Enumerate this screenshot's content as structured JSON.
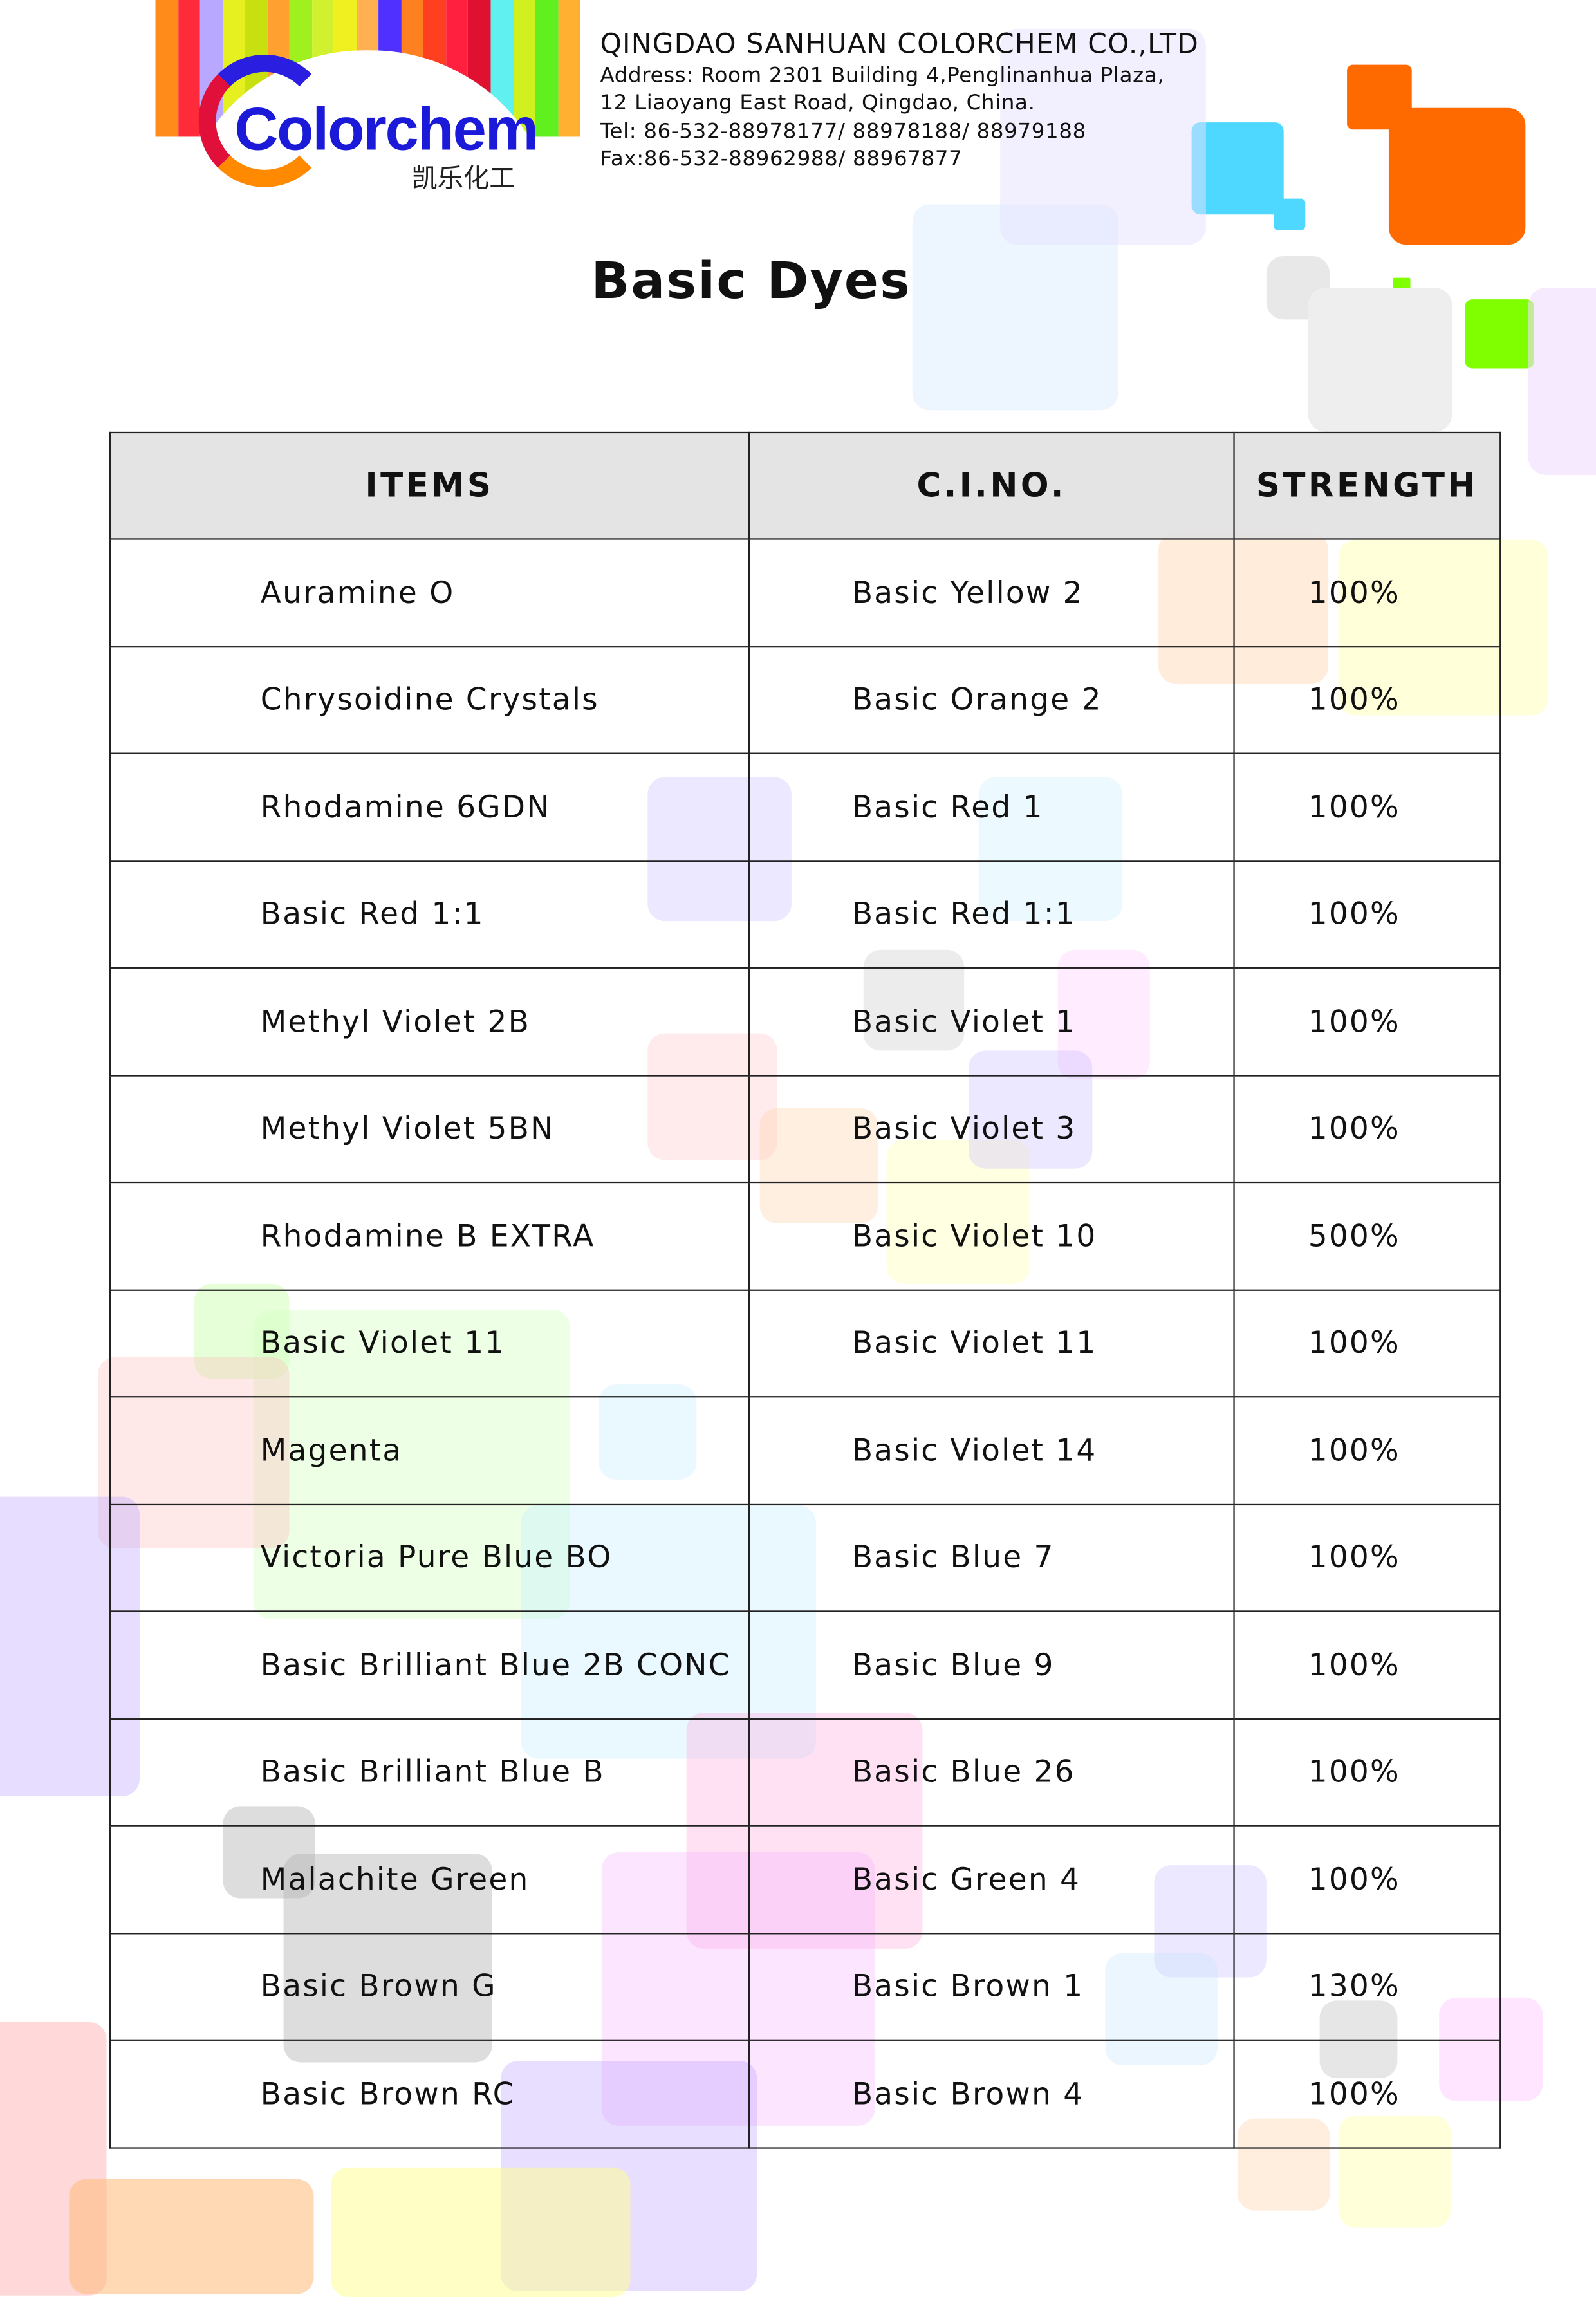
{
  "header": {
    "logo_text": "Colorchem",
    "logo_cn": "凯乐化工",
    "company": "QINGDAO SANHUAN COLORCHEM CO.,LTD",
    "address_1": "Address:  Room 2301 Building 4,Penglinanhua Plaza,",
    "address_2": "12 Liaoyang East Road, Qingdao, China.",
    "tel": "Tel: 86-532-88978177/ 88978188/ 88979188",
    "fax": "Fax:86-532-88962988/ 88967877"
  },
  "title": "Basic Dyes",
  "table": {
    "columns": [
      "ITEMS",
      "C.I.NO.",
      "STRENGTH"
    ],
    "rows": [
      [
        "Auramine O",
        "Basic Yellow 2",
        "100%"
      ],
      [
        "Chrysoidine Crystals",
        "Basic Orange 2",
        "100%"
      ],
      [
        "Rhodamine 6GDN",
        "Basic Red 1",
        "100%"
      ],
      [
        "Basic Red 1:1",
        "Basic Red 1:1",
        "100%"
      ],
      [
        "Methyl Violet 2B",
        "Basic Violet 1",
        "100%"
      ],
      [
        "Methyl Violet 5BN",
        "Basic Violet 3",
        "100%"
      ],
      [
        "Rhodamine B EXTRA",
        "Basic Violet 10",
        "500%"
      ],
      [
        "Basic Violet 11",
        "Basic Violet 11",
        "100%"
      ],
      [
        "Magenta",
        "Basic Violet 14",
        "100%"
      ],
      [
        "Victoria Pure Blue BO",
        "Basic Blue 7",
        "100%"
      ],
      [
        "Basic Brilliant Blue 2B CONC",
        "Basic Blue 9",
        "100%"
      ],
      [
        "Basic Brilliant Blue B",
        "Basic Blue 26",
        "100%"
      ],
      [
        "Malachite Green",
        "Basic Green 4",
        "100%"
      ],
      [
        "Basic Brown G",
        "Basic Brown 1",
        "130%"
      ],
      [
        "Basic Brown RC",
        "Basic Brown 4",
        "100%"
      ]
    ]
  }
}
